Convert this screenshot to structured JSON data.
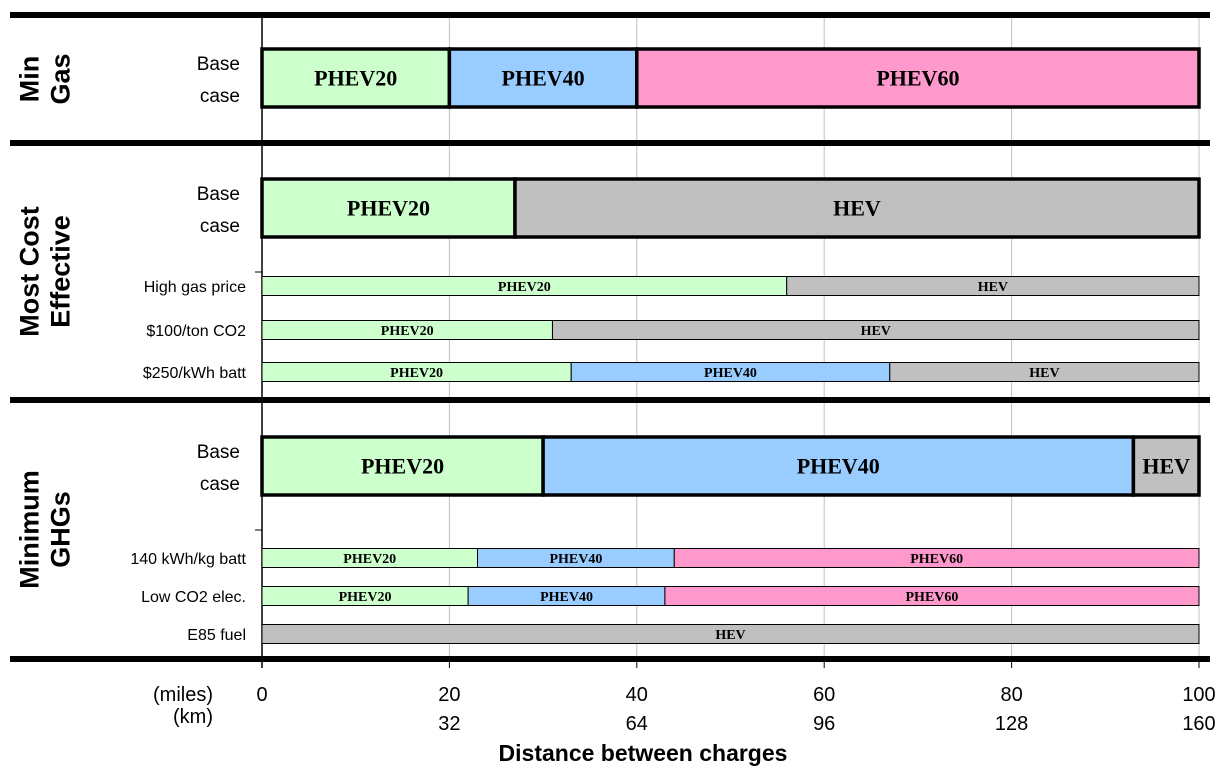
{
  "chart_data": {
    "type": "bar",
    "subtype": "stacked-horizontal-range",
    "xlabel": "Distance between charges",
    "x_unit_labels": [
      "(miles)",
      "(km)"
    ],
    "x_ticks_miles": [
      0,
      20,
      40,
      60,
      80,
      100
    ],
    "x_ticks_km": [
      "",
      "32",
      "64",
      "96",
      "128",
      "160"
    ],
    "xlim": [
      0,
      100
    ],
    "grid": true,
    "colors": {
      "PHEV20": "#ccffcc",
      "PHEV40": "#99ccff",
      "PHEV60": "#ff99cc",
      "HEV": "#c0c0c0"
    },
    "groups": [
      {
        "label_lines": [
          "Min",
          "Gas"
        ],
        "rows": [
          {
            "label_lines": [
              "Base",
              "case"
            ],
            "base": true,
            "segments": [
              {
                "name": "PHEV20",
                "start": 0,
                "end": 20
              },
              {
                "name": "PHEV40",
                "start": 20,
                "end": 40
              },
              {
                "name": "PHEV60",
                "start": 40,
                "end": 100
              }
            ]
          }
        ]
      },
      {
        "label_lines": [
          "Most Cost",
          "Effective"
        ],
        "rows": [
          {
            "label_lines": [
              "Base",
              "case"
            ],
            "base": true,
            "segments": [
              {
                "name": "PHEV20",
                "start": 0,
                "end": 27
              },
              {
                "name": "HEV",
                "start": 27,
                "end": 100
              }
            ]
          },
          {
            "label_lines": [
              "High gas price"
            ],
            "base": false,
            "segments": [
              {
                "name": "PHEV20",
                "start": 0,
                "end": 56
              },
              {
                "name": "HEV",
                "start": 56,
                "end": 100
              }
            ]
          },
          {
            "label_lines": [
              "$100/ton CO2"
            ],
            "base": false,
            "segments": [
              {
                "name": "PHEV20",
                "start": 0,
                "end": 31
              },
              {
                "name": "HEV",
                "start": 31,
                "end": 100
              }
            ]
          },
          {
            "label_lines": [
              "$250/kWh batt"
            ],
            "base": false,
            "segments": [
              {
                "name": "PHEV20",
                "start": 0,
                "end": 33
              },
              {
                "name": "PHEV40",
                "start": 33,
                "end": 67
              },
              {
                "name": "HEV",
                "start": 67,
                "end": 100
              }
            ]
          }
        ]
      },
      {
        "label_lines": [
          "Minimum",
          "GHGs"
        ],
        "rows": [
          {
            "label_lines": [
              "Base",
              "case"
            ],
            "base": true,
            "segments": [
              {
                "name": "PHEV20",
                "start": 0,
                "end": 30
              },
              {
                "name": "PHEV40",
                "start": 30,
                "end": 93
              },
              {
                "name": "HEV",
                "start": 93,
                "end": 100
              }
            ]
          },
          {
            "label_lines": [
              "140 kWh/kg batt"
            ],
            "base": false,
            "segments": [
              {
                "name": "PHEV20",
                "start": 0,
                "end": 23
              },
              {
                "name": "PHEV40",
                "start": 23,
                "end": 44
              },
              {
                "name": "PHEV60",
                "start": 44,
                "end": 100
              }
            ]
          },
          {
            "label_lines": [
              "Low CO2 elec."
            ],
            "base": false,
            "segments": [
              {
                "name": "PHEV20",
                "start": 0,
                "end": 22
              },
              {
                "name": "PHEV40",
                "start": 22,
                "end": 43
              },
              {
                "name": "PHEV60",
                "start": 43,
                "end": 100
              }
            ]
          },
          {
            "label_lines": [
              "E85 fuel"
            ],
            "base": false,
            "segments": [
              {
                "name": "HEV",
                "start": 0,
                "end": 100
              }
            ]
          }
        ]
      }
    ]
  }
}
